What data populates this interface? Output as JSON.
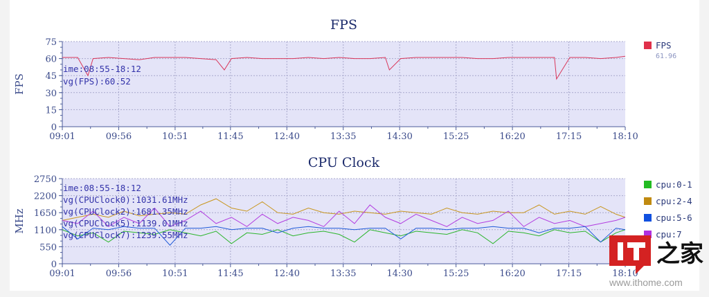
{
  "chart_data": [
    {
      "type": "line",
      "title": "FPS",
      "ylabel": "FPS",
      "xlabel": "",
      "ylim": [
        0,
        75
      ],
      "yticks": [
        "0",
        "15",
        "30",
        "45",
        "60",
        "75"
      ],
      "xticks": [
        "09:01",
        "09:56",
        "10:51",
        "11:45",
        "12:40",
        "13:35",
        "14:30",
        "15:25",
        "16:20",
        "17:15",
        "18:10"
      ],
      "grid": true,
      "background": "#e4e4f8",
      "annotations": [
        "ime:08:55-18:12",
        "vg(FPS):60.52"
      ],
      "legend": {
        "placement": "right",
        "entries": [
          {
            "name": "FPS",
            "color": "#e0304a",
            "value": "61.96"
          }
        ]
      },
      "series": [
        {
          "name": "FPS",
          "color": "#d9365a",
          "x": [
            "09:01",
            "09:16",
            "09:26",
            "09:31",
            "09:46",
            "10:01",
            "10:16",
            "10:31",
            "10:46",
            "11:01",
            "11:16",
            "11:31",
            "11:39",
            "11:46",
            "12:01",
            "12:16",
            "12:31",
            "12:46",
            "13:01",
            "13:16",
            "13:31",
            "13:46",
            "14:01",
            "14:16",
            "14:20",
            "14:31",
            "14:46",
            "15:01",
            "15:16",
            "15:31",
            "15:46",
            "16:01",
            "16:16",
            "16:31",
            "16:46",
            "17:01",
            "17:03",
            "17:16",
            "17:31",
            "17:46",
            "18:01",
            "18:10"
          ],
          "values": [
            61,
            61,
            45,
            60,
            61,
            60,
            59,
            61,
            61,
            61,
            60,
            59,
            50,
            60,
            61,
            60,
            60,
            60,
            61,
            60,
            61,
            60,
            60,
            61,
            50,
            60,
            61,
            61,
            61,
            61,
            60,
            60,
            61,
            61,
            61,
            61,
            42,
            61,
            61,
            60,
            61,
            62
          ]
        }
      ]
    },
    {
      "type": "line",
      "title": "CPU Clock",
      "ylabel": "MHz",
      "xlabel": "",
      "ylim": [
        0,
        2750
      ],
      "yticks": [
        "0",
        "550",
        "1100",
        "1650",
        "2200",
        "2750"
      ],
      "xticks": [
        "09:01",
        "09:56",
        "10:51",
        "11:45",
        "12:40",
        "13:35",
        "14:30",
        "15:25",
        "16:20",
        "17:15",
        "18:10"
      ],
      "grid": true,
      "background": "#e4e4f8",
      "annotations": [
        "ime:08:55-18:12",
        "vg(CPUClock0):1031.61MHz",
        "vg(CPUClock2):1681.35MHz",
        "vg(CPUClock5):1139.01MHz",
        "vg(CPUClock7):1239.55MHz"
      ],
      "legend": {
        "placement": "right",
        "entries": [
          {
            "name": "cpu:0-1",
            "color": "#22bb22"
          },
          {
            "name": "cpu:2-4",
            "color": "#c08a10"
          },
          {
            "name": "cpu:5-6",
            "color": "#1050e0"
          },
          {
            "name": "cpu:7",
            "color": "#b030e0"
          }
        ]
      },
      "x": [
        "09:01",
        "09:16",
        "09:31",
        "09:46",
        "10:01",
        "10:16",
        "10:31",
        "10:46",
        "11:01",
        "11:16",
        "11:31",
        "11:46",
        "12:01",
        "12:16",
        "12:31",
        "12:46",
        "13:01",
        "13:16",
        "13:31",
        "13:46",
        "14:01",
        "14:16",
        "14:31",
        "14:46",
        "15:01",
        "15:16",
        "15:31",
        "15:46",
        "16:01",
        "16:16",
        "16:31",
        "16:46",
        "17:01",
        "17:16",
        "17:31",
        "17:46",
        "18:01",
        "18:10"
      ],
      "series": [
        {
          "name": "cpu:2-4",
          "color": "#c8961e",
          "values": [
            1400,
            1500,
            1600,
            1500,
            1700,
            1550,
            1600,
            1650,
            1600,
            1900,
            2100,
            1800,
            1700,
            2000,
            1650,
            1600,
            1800,
            1650,
            1600,
            1700,
            1650,
            1600,
            1700,
            1650,
            1600,
            1800,
            1650,
            1600,
            1700,
            1650,
            1650,
            1900,
            1600,
            1700,
            1600,
            1850,
            1600,
            1500
          ]
        },
        {
          "name": "cpu:7",
          "color": "#b23de0",
          "values": [
            1400,
            1300,
            1700,
            1200,
            1500,
            1300,
            1800,
            1200,
            1400,
            1700,
            1300,
            1500,
            1200,
            1600,
            1300,
            1500,
            1400,
            1200,
            1700,
            1300,
            1900,
            1500,
            1300,
            1600,
            1400,
            1200,
            1500,
            1300,
            1400,
            1700,
            1200,
            1500,
            1300,
            1400,
            1200,
            1300,
            1400,
            1500
          ]
        },
        {
          "name": "cpu:0-1",
          "color": "#2ab52a",
          "values": [
            1100,
            900,
            1000,
            700,
            1050,
            1000,
            950,
            1100,
            1000,
            900,
            1050,
            650,
            1000,
            950,
            1100,
            900,
            1000,
            1050,
            950,
            700,
            1100,
            1000,
            900,
            1050,
            1000,
            950,
            1100,
            1000,
            650,
            1050,
            1000,
            900,
            1100,
            1000,
            1050,
            700,
            1000,
            1100
          ]
        },
        {
          "name": "cpu:5-6",
          "color": "#1f5ad8",
          "values": [
            1200,
            800,
            1150,
            1100,
            1200,
            1150,
            1150,
            600,
            1150,
            1150,
            1200,
            1100,
            1150,
            1150,
            1000,
            1150,
            1200,
            1150,
            1150,
            1100,
            1150,
            1150,
            800,
            1150,
            1150,
            1100,
            1150,
            1150,
            1200,
            1150,
            1150,
            1000,
            1150,
            1150,
            1200,
            700,
            1150,
            1100
          ]
        }
      ]
    }
  ],
  "watermark": {
    "logo": "IT之家",
    "url": "www.ithome.com"
  }
}
